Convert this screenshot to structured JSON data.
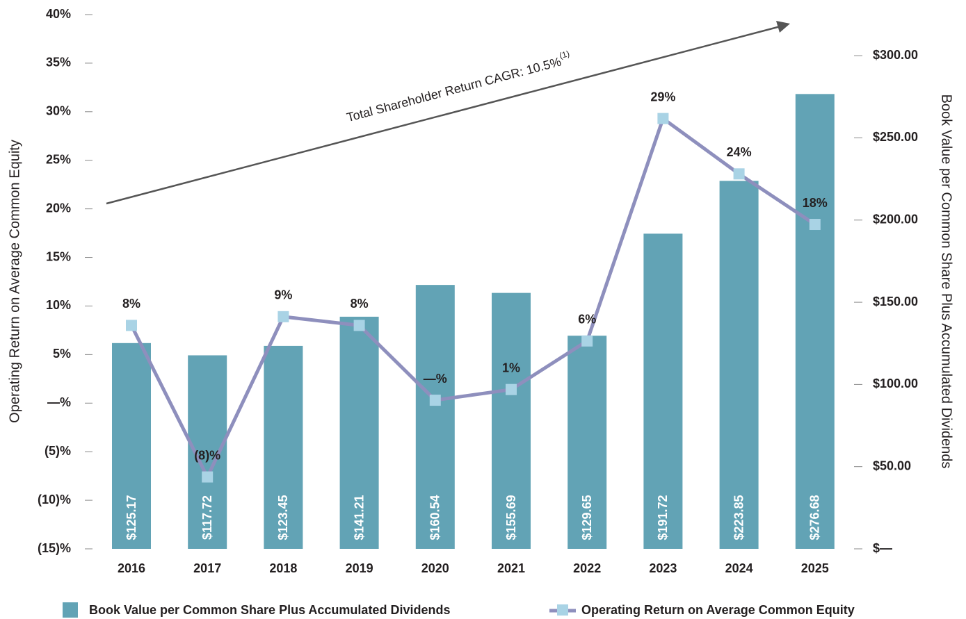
{
  "chart_data": {
    "type": "combo",
    "categories": [
      "2016",
      "2017",
      "2018",
      "2019",
      "2020",
      "2021",
      "2022",
      "2023",
      "2024",
      "2025"
    ],
    "series": [
      {
        "name": "Book Value per Common Share Plus Accumulated Dividends",
        "type": "bar",
        "axis": "y2",
        "color": "#62a3b5",
        "values": [
          125.17,
          117.72,
          123.45,
          141.21,
          160.54,
          155.69,
          129.65,
          191.72,
          223.85,
          276.68
        ],
        "value_labels": [
          "$125.17",
          "$117.72",
          "$123.45",
          "$141.21",
          "$160.54",
          "$155.69",
          "$129.65",
          "$191.72",
          "$223.85",
          "$276.68"
        ]
      },
      {
        "name": "Operating Return on Average Common Equity",
        "type": "line",
        "color": "#8e8fbd",
        "marker_color": "#a9d3e5",
        "values": [
          8.0,
          -7.6,
          8.9,
          8.0,
          0.3,
          1.4,
          6.4,
          29.3,
          23.6,
          18.4
        ],
        "value_labels": [
          "8%",
          "(8)%",
          "9%",
          "8%",
          "—%",
          "1%",
          "6%",
          "29%",
          "24%",
          "18%"
        ]
      }
    ],
    "ylabel": "Operating Return on Average Common Equity",
    "y2label": "Book Value per Common Share Plus Accumulated Dividends",
    "ylim": [
      -15,
      40
    ],
    "yticks": [
      {
        "value": -15,
        "label": "(15)%"
      },
      {
        "value": -10,
        "label": "(10)%"
      },
      {
        "value": -5,
        "label": "(5)%"
      },
      {
        "value": 0,
        "label": "—%"
      },
      {
        "value": 5,
        "label": "5%"
      },
      {
        "value": 10,
        "label": "10%"
      },
      {
        "value": 15,
        "label": "15%"
      },
      {
        "value": 20,
        "label": "20%"
      },
      {
        "value": 25,
        "label": "25%"
      },
      {
        "value": 30,
        "label": "30%"
      },
      {
        "value": 35,
        "label": "35%"
      },
      {
        "value": 40,
        "label": "40%"
      }
    ],
    "y2lim": [
      0,
      325
    ],
    "y2ticks": [
      {
        "value": 0,
        "label": "$—"
      },
      {
        "value": 50,
        "label": "$50.00"
      },
      {
        "value": 100,
        "label": "$100.00"
      },
      {
        "value": 150,
        "label": "$150.00"
      },
      {
        "value": 200,
        "label": "$200.00"
      },
      {
        "value": 250,
        "label": "$250.00"
      },
      {
        "value": 300,
        "label": "$300.00"
      }
    ],
    "annotation": {
      "text": "Total Shareholder Return CAGR: 10.5%",
      "superscript": "(1)"
    },
    "legend": "bottom"
  }
}
